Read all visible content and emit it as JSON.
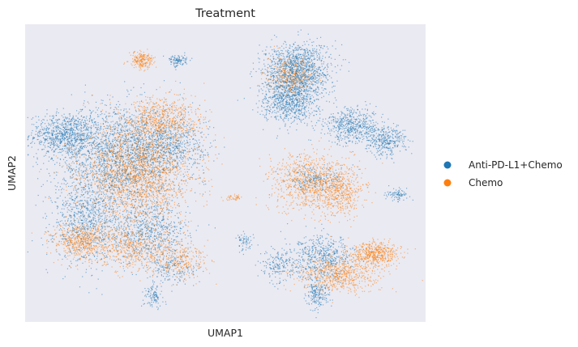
{
  "chart_data": {
    "type": "scatter",
    "title": "Treatment",
    "xlabel": "UMAP1",
    "ylabel": "UMAP2",
    "xticks": [],
    "yticks": [],
    "grid": false,
    "background_color": "#eaeaf2",
    "legend": {
      "placement": "right",
      "entries": [
        {
          "name": "Anti-PD-L1+Chemo",
          "color": "#1f77b4"
        },
        {
          "name": "Chemo",
          "color": "#ff7f0e"
        }
      ]
    },
    "series": [
      {
        "name": "Anti-PD-L1+Chemo",
        "color": "#1f77b4",
        "clusters": [
          {
            "x": 0.1,
            "y": 0.63,
            "sx": 0.045,
            "sy": 0.035,
            "weight": 40
          },
          {
            "x": 0.24,
            "y": 0.55,
            "sx": 0.08,
            "sy": 0.09,
            "weight": 95
          },
          {
            "x": 0.15,
            "y": 0.34,
            "sx": 0.04,
            "sy": 0.07,
            "weight": 35
          },
          {
            "x": 0.31,
            "y": 0.3,
            "sx": 0.05,
            "sy": 0.05,
            "weight": 30
          },
          {
            "x": 0.35,
            "y": 0.6,
            "sx": 0.05,
            "sy": 0.05,
            "weight": 30
          },
          {
            "x": 0.68,
            "y": 0.85,
            "sx": 0.04,
            "sy": 0.045,
            "weight": 55
          },
          {
            "x": 0.66,
            "y": 0.75,
            "sx": 0.035,
            "sy": 0.04,
            "weight": 40
          },
          {
            "x": 0.82,
            "y": 0.66,
            "sx": 0.035,
            "sy": 0.03,
            "weight": 25
          },
          {
            "x": 0.9,
            "y": 0.61,
            "sx": 0.025,
            "sy": 0.025,
            "weight": 15
          },
          {
            "x": 0.72,
            "y": 0.48,
            "sx": 0.035,
            "sy": 0.02,
            "weight": 10
          },
          {
            "x": 0.74,
            "y": 0.22,
            "sx": 0.04,
            "sy": 0.035,
            "weight": 25
          },
          {
            "x": 0.73,
            "y": 0.1,
            "sx": 0.015,
            "sy": 0.03,
            "weight": 10
          },
          {
            "x": 0.63,
            "y": 0.19,
            "sx": 0.02,
            "sy": 0.025,
            "weight": 8
          },
          {
            "x": 0.37,
            "y": 0.18,
            "sx": 0.03,
            "sy": 0.03,
            "weight": 8
          },
          {
            "x": 0.32,
            "y": 0.09,
            "sx": 0.012,
            "sy": 0.02,
            "weight": 5
          },
          {
            "x": 0.38,
            "y": 0.88,
            "sx": 0.012,
            "sy": 0.01,
            "weight": 5
          },
          {
            "x": 0.55,
            "y": 0.27,
            "sx": 0.01,
            "sy": 0.015,
            "weight": 3
          },
          {
            "x": 0.93,
            "y": 0.43,
            "sx": 0.015,
            "sy": 0.01,
            "weight": 4
          }
        ]
      },
      {
        "name": "Chemo",
        "color": "#ff7f0e",
        "clusters": [
          {
            "x": 0.28,
            "y": 0.5,
            "sx": 0.07,
            "sy": 0.08,
            "weight": 90
          },
          {
            "x": 0.34,
            "y": 0.68,
            "sx": 0.05,
            "sy": 0.04,
            "weight": 30
          },
          {
            "x": 0.14,
            "y": 0.27,
            "sx": 0.035,
            "sy": 0.03,
            "weight": 25
          },
          {
            "x": 0.29,
            "y": 0.88,
            "sx": 0.015,
            "sy": 0.015,
            "weight": 10
          },
          {
            "x": 0.27,
            "y": 0.25,
            "sx": 0.05,
            "sy": 0.04,
            "weight": 25
          },
          {
            "x": 0.39,
            "y": 0.21,
            "sx": 0.035,
            "sy": 0.03,
            "weight": 12
          },
          {
            "x": 0.66,
            "y": 0.83,
            "sx": 0.03,
            "sy": 0.03,
            "weight": 15
          },
          {
            "x": 0.71,
            "y": 0.47,
            "sx": 0.05,
            "sy": 0.05,
            "weight": 40
          },
          {
            "x": 0.79,
            "y": 0.44,
            "sx": 0.03,
            "sy": 0.04,
            "weight": 20
          },
          {
            "x": 0.87,
            "y": 0.23,
            "sx": 0.03,
            "sy": 0.02,
            "weight": 25
          },
          {
            "x": 0.78,
            "y": 0.16,
            "sx": 0.05,
            "sy": 0.03,
            "weight": 30
          },
          {
            "x": 0.52,
            "y": 0.42,
            "sx": 0.01,
            "sy": 0.005,
            "weight": 2
          }
        ]
      }
    ]
  }
}
